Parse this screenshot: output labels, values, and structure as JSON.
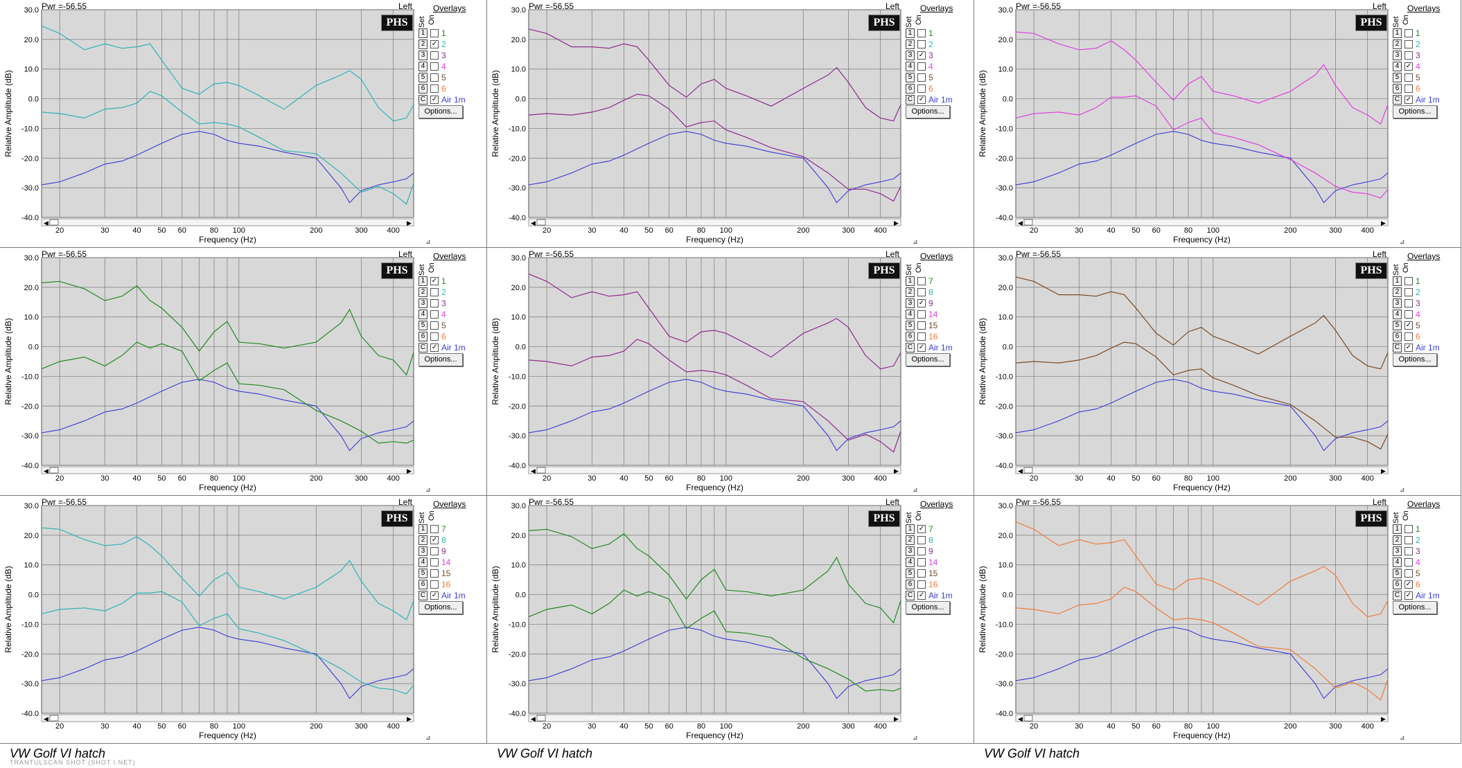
{
  "common": {
    "pwr": "Pwr =-56.55",
    "channel": "Left",
    "logo": "PHS",
    "overlays_title": "Overlays",
    "set_header": "Set",
    "on_header": "On",
    "options_label": "Options...",
    "y_axis_label": "Relative Amplitude (dB)",
    "x_axis_label": "Frequency (Hz)",
    "y_ticks": [
      "30.0",
      "20.0",
      "10.0",
      "0.0",
      "-10.0",
      "-20.0",
      "-30.0",
      "-40.0"
    ],
    "x_ticks": [
      "20",
      "30",
      "40",
      "50",
      "60",
      "80",
      "100",
      "200",
      "300",
      "400"
    ],
    "set_numbers": [
      "1",
      "2",
      "3",
      "4",
      "5",
      "6",
      "C"
    ]
  },
  "captions": [
    "VW Golf VI hatch",
    "VW Golf VI hatch",
    "VW Golf VI hatch"
  ],
  "watermark": "TRANTULSCAN SHOT (SHOT I.NET)",
  "colors": {
    "ref": "#3b3bd6",
    "grid_bg": "#d8d8d8",
    "teal": "#2fb3b3",
    "purple": "#8e2a8e",
    "magenta": "#e040e0",
    "green": "#1f8a1f",
    "brown": "#7a4a22",
    "orange": "#f07a3a"
  },
  "panels": [
    {
      "id": "p1",
      "color": "#2fb3b3",
      "overlays": [
        {
          "label": "1",
          "color": "#1f8a1f",
          "checked": false
        },
        {
          "label": "2",
          "color": "#2fb3b3",
          "checked": true
        },
        {
          "label": "3",
          "color": "#8e2a8e",
          "checked": false
        },
        {
          "label": "4",
          "color": "#e040e0",
          "checked": false
        },
        {
          "label": "5",
          "color": "#7a4a22",
          "checked": false
        },
        {
          "label": "6",
          "color": "#f07a3a",
          "checked": false
        },
        {
          "label": "Air 1m",
          "color": "#3b3bd6",
          "checked": true
        }
      ]
    },
    {
      "id": "p2",
      "color": "#8e2a8e",
      "overlays": [
        {
          "label": "1",
          "color": "#1f8a1f",
          "checked": false
        },
        {
          "label": "2",
          "color": "#2fb3b3",
          "checked": false
        },
        {
          "label": "3",
          "color": "#8e2a8e",
          "checked": true
        },
        {
          "label": "4",
          "color": "#e040e0",
          "checked": false
        },
        {
          "label": "5",
          "color": "#7a4a22",
          "checked": false
        },
        {
          "label": "6",
          "color": "#f07a3a",
          "checked": false
        },
        {
          "label": "Air 1m",
          "color": "#3b3bd6",
          "checked": true
        }
      ]
    },
    {
      "id": "p3",
      "color": "#e040e0",
      "overlays": [
        {
          "label": "1",
          "color": "#1f8a1f",
          "checked": false
        },
        {
          "label": "2",
          "color": "#2fb3b3",
          "checked": false
        },
        {
          "label": "3",
          "color": "#8e2a8e",
          "checked": false
        },
        {
          "label": "4",
          "color": "#e040e0",
          "checked": true
        },
        {
          "label": "5",
          "color": "#7a4a22",
          "checked": false
        },
        {
          "label": "6",
          "color": "#f07a3a",
          "checked": false
        },
        {
          "label": "Air 1m",
          "color": "#3b3bd6",
          "checked": true
        }
      ]
    },
    {
      "id": "p4",
      "color": "#1f8a1f",
      "overlays": [
        {
          "label": "1",
          "color": "#1f8a1f",
          "checked": true
        },
        {
          "label": "2",
          "color": "#2fb3b3",
          "checked": false
        },
        {
          "label": "3",
          "color": "#8e2a8e",
          "checked": false
        },
        {
          "label": "4",
          "color": "#e040e0",
          "checked": false
        },
        {
          "label": "5",
          "color": "#7a4a22",
          "checked": false
        },
        {
          "label": "6",
          "color": "#f07a3a",
          "checked": false
        },
        {
          "label": "Air 1m",
          "color": "#3b3bd6",
          "checked": true
        }
      ]
    },
    {
      "id": "p5",
      "color": "#8e2a8e",
      "overlays": [
        {
          "label": "7",
          "color": "#1f8a1f",
          "checked": false
        },
        {
          "label": "8",
          "color": "#2fb3b3",
          "checked": false
        },
        {
          "label": "9",
          "color": "#8e2a8e",
          "checked": true
        },
        {
          "label": "14",
          "color": "#e040e0",
          "checked": false
        },
        {
          "label": "15",
          "color": "#7a4a22",
          "checked": false
        },
        {
          "label": "16",
          "color": "#f07a3a",
          "checked": false
        },
        {
          "label": "Air 1m",
          "color": "#3b3bd6",
          "checked": true
        }
      ]
    },
    {
      "id": "p6",
      "color": "#7a4a22",
      "overlays": [
        {
          "label": "1",
          "color": "#1f8a1f",
          "checked": false
        },
        {
          "label": "2",
          "color": "#2fb3b3",
          "checked": false
        },
        {
          "label": "3",
          "color": "#8e2a8e",
          "checked": false
        },
        {
          "label": "4",
          "color": "#e040e0",
          "checked": false
        },
        {
          "label": "5",
          "color": "#7a4a22",
          "checked": true
        },
        {
          "label": "6",
          "color": "#f07a3a",
          "checked": false
        },
        {
          "label": "Air 1m",
          "color": "#3b3bd6",
          "checked": true
        }
      ]
    },
    {
      "id": "p7",
      "color": "#2fb3b3",
      "overlays": [
        {
          "label": "7",
          "color": "#1f8a1f",
          "checked": false
        },
        {
          "label": "8",
          "color": "#2fb3b3",
          "checked": true
        },
        {
          "label": "9",
          "color": "#8e2a8e",
          "checked": false
        },
        {
          "label": "14",
          "color": "#e040e0",
          "checked": false
        },
        {
          "label": "15",
          "color": "#7a4a22",
          "checked": false
        },
        {
          "label": "16",
          "color": "#f07a3a",
          "checked": false
        },
        {
          "label": "Air 1m",
          "color": "#3b3bd6",
          "checked": true
        }
      ]
    },
    {
      "id": "p8",
      "color": "#1f8a1f",
      "overlays": [
        {
          "label": "7",
          "color": "#1f8a1f",
          "checked": true
        },
        {
          "label": "8",
          "color": "#2fb3b3",
          "checked": false
        },
        {
          "label": "9",
          "color": "#8e2a8e",
          "checked": false
        },
        {
          "label": "14",
          "color": "#e040e0",
          "checked": false
        },
        {
          "label": "15",
          "color": "#7a4a22",
          "checked": false
        },
        {
          "label": "16",
          "color": "#f07a3a",
          "checked": false
        },
        {
          "label": "Air 1m",
          "color": "#3b3bd6",
          "checked": true
        }
      ]
    },
    {
      "id": "p9",
      "color": "#f07a3a",
      "overlays": [
        {
          "label": "1",
          "color": "#1f8a1f",
          "checked": false
        },
        {
          "label": "2",
          "color": "#2fb3b3",
          "checked": false
        },
        {
          "label": "3",
          "color": "#8e2a8e",
          "checked": false
        },
        {
          "label": "4",
          "color": "#e040e0",
          "checked": false
        },
        {
          "label": "5",
          "color": "#7a4a22",
          "checked": false
        },
        {
          "label": "6",
          "color": "#f07a3a",
          "checked": true
        },
        {
          "label": "Air 1m",
          "color": "#3b3bd6",
          "checked": true
        }
      ]
    }
  ],
  "chart_data": {
    "type": "line",
    "xlabel": "Frequency (Hz)",
    "ylabel": "Relative Amplitude (dB)",
    "xscale": "log",
    "xlim": [
      17,
      480
    ],
    "ylim": [
      -40,
      30
    ],
    "reference_series": {
      "name": "Air 1m",
      "x": [
        17,
        20,
        25,
        30,
        35,
        40,
        50,
        60,
        70,
        80,
        90,
        100,
        120,
        150,
        200,
        250,
        270,
        300,
        350,
        400,
        450,
        480
      ],
      "y": [
        -29,
        -28,
        -25,
        -22,
        -21,
        -19,
        -15,
        -12,
        -11,
        -12,
        -14,
        -15,
        -16,
        -18,
        -20,
        -30,
        -35,
        -31,
        -29,
        -28,
        -27,
        -25
      ]
    },
    "measured_upper": {
      "x": [
        17,
        20,
        25,
        30,
        35,
        40,
        45,
        50,
        60,
        70,
        80,
        90,
        100,
        120,
        150,
        200,
        250,
        270,
        300,
        350,
        400,
        450,
        480
      ],
      "y": [
        23,
        22,
        18,
        17,
        17,
        19,
        17,
        13,
        5,
        0,
        5,
        7,
        3,
        1,
        -2,
        3,
        8,
        11,
        5,
        -3,
        -6,
        -8,
        -2
      ]
    },
    "measured_lower": {
      "x": [
        17,
        20,
        25,
        30,
        35,
        40,
        45,
        50,
        60,
        70,
        80,
        90,
        100,
        120,
        150,
        200,
        250,
        300,
        350,
        400,
        450,
        480
      ],
      "y": [
        -6,
        -5,
        -5,
        -5,
        -3,
        0,
        1,
        1,
        -3,
        -10,
        -8,
        -7,
        -11,
        -13,
        -16,
        -20,
        -25,
        -30,
        -31,
        -32,
        -34,
        -30
      ]
    }
  }
}
